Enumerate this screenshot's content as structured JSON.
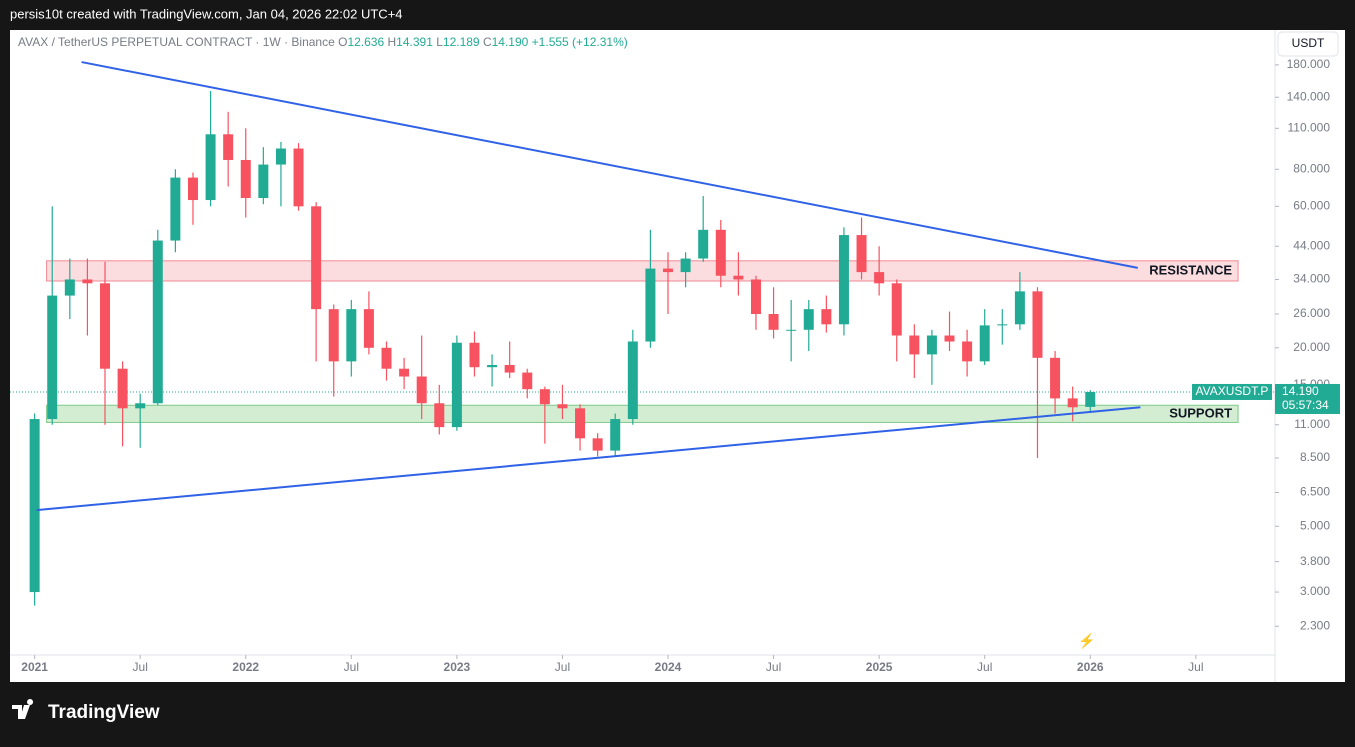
{
  "page": {
    "caption": "persis10t created with TradingView.com, Jan 04, 2026 22:02 UTC+4",
    "brand": "TradingView",
    "currency_button": "USDT"
  },
  "chart_data": {
    "type": "candlestick",
    "title": "AVAX / TetherUS PERPETUAL CONTRACT · 1W · Binance",
    "legend": {
      "o_prefix": "O",
      "o": "12.636",
      "h_prefix": "H",
      "h": "14.391",
      "l_prefix": "L",
      "l": "12.189",
      "c_prefix": "C",
      "c": "14.190",
      "change": "+1.555 (+12.31%)"
    },
    "up_color": "#22ab94",
    "down_color": "#f7525f",
    "open": [
      3.0,
      11.5,
      30,
      34,
      33,
      17,
      12.5,
      13,
      46,
      75,
      63,
      105,
      86,
      64,
      83,
      94,
      60,
      27,
      18,
      27,
      20,
      17,
      16,
      13,
      10.8,
      20.8,
      17.2,
      17.5,
      16.5,
      14.5,
      12.9,
      12.5,
      9.9,
      9.0,
      11.5,
      21,
      37,
      36,
      40,
      50,
      35,
      34,
      26,
      23,
      23,
      27,
      24,
      48,
      36,
      33,
      22,
      19,
      22,
      21,
      18,
      23.8,
      24,
      31,
      18.5,
      13.5,
      12.636
    ],
    "high": [
      12.0,
      60,
      40,
      40,
      39,
      18,
      14,
      50,
      80,
      78,
      147,
      125,
      110,
      95,
      99,
      98,
      62,
      28,
      29,
      31,
      21,
      18.5,
      22,
      15,
      22,
      22.7,
      19,
      21,
      17,
      14.8,
      15,
      12.9,
      10.3,
      12,
      23,
      50,
      42,
      42,
      65,
      54,
      42,
      35,
      32,
      29,
      29,
      30,
      51,
      55,
      44,
      34,
      24,
      23,
      26.5,
      23,
      27,
      27,
      36,
      32,
      19.5,
      14.8,
      14.391
    ],
    "low": [
      2.7,
      11.0,
      25,
      22,
      11,
      9.3,
      9.2,
      12.8,
      42,
      52,
      60,
      70,
      55,
      61,
      60,
      58,
      18,
      13.7,
      16,
      19,
      15.5,
      14.5,
      11.5,
      10.2,
      10.5,
      16,
      14.8,
      15.8,
      13.5,
      9.5,
      11.5,
      9.0,
      8.6,
      8.6,
      11,
      20,
      26,
      32,
      39,
      32,
      30,
      23,
      21.5,
      18,
      19.5,
      22.5,
      22,
      34,
      30,
      18,
      15.8,
      15,
      19.5,
      16,
      17.5,
      20.5,
      23,
      8.5,
      12,
      11.3,
      12.189
    ],
    "close": [
      11.5,
      30,
      34,
      33,
      17,
      12.5,
      13,
      46,
      75,
      63,
      105,
      86,
      64,
      83,
      94,
      60,
      27,
      18,
      27,
      20,
      17,
      16,
      13,
      10.8,
      20.8,
      17.2,
      17.5,
      16.5,
      14.5,
      12.9,
      12.5,
      9.9,
      9.0,
      11.5,
      21,
      37,
      36,
      40,
      50,
      35,
      34,
      26,
      23,
      23,
      27,
      24,
      48,
      36,
      33,
      22,
      19,
      22,
      21,
      18,
      23.8,
      24,
      31,
      18.5,
      13.5,
      12.6,
      14.19
    ],
    "xlim": [
      -1.4,
      70.5
    ],
    "xticks": [
      {
        "value": 0,
        "label": "2021"
      },
      {
        "value": 6,
        "label": "Jul"
      },
      {
        "value": 12,
        "label": "2022"
      },
      {
        "value": 18,
        "label": "Jul"
      },
      {
        "value": 24,
        "label": "2023"
      },
      {
        "value": 30,
        "label": "Jul"
      },
      {
        "value": 36,
        "label": "2024"
      },
      {
        "value": 42,
        "label": "Jul"
      },
      {
        "value": 48,
        "label": "2025"
      },
      {
        "value": 54,
        "label": "Jul"
      },
      {
        "value": 60,
        "label": "2026"
      },
      {
        "value": 66,
        "label": "Jul"
      }
    ],
    "log_scale": true,
    "ylim": [
      1.84,
      236
    ],
    "yticks": [
      {
        "value": 2.3,
        "label": "2.300"
      },
      {
        "value": 3,
        "label": "3.000"
      },
      {
        "value": 3.8,
        "label": "3.800"
      },
      {
        "value": 5,
        "label": "5.000"
      },
      {
        "value": 6.5,
        "label": "6.500"
      },
      {
        "value": 8.5,
        "label": "8.500"
      },
      {
        "value": 11,
        "label": "11.000"
      },
      {
        "value": 15,
        "label": "15.000"
      },
      {
        "value": 20,
        "label": "20.000"
      },
      {
        "value": 26,
        "label": "26.000"
      },
      {
        "value": 34,
        "label": "34.000"
      },
      {
        "value": 44,
        "label": "44.000"
      },
      {
        "value": 60,
        "label": "60.000"
      },
      {
        "value": 80,
        "label": "80.000"
      },
      {
        "value": 110,
        "label": "110.000"
      },
      {
        "value": 140,
        "label": "140.000"
      },
      {
        "value": 180,
        "label": "180.000"
      }
    ],
    "zones": [
      {
        "label": "RESISTANCE",
        "low": 33.6,
        "high": 39.3,
        "x": [
          0.68,
          68.4
        ],
        "fill": "#fbdde0",
        "stroke": "#f08a93"
      },
      {
        "label": "SUPPORT",
        "low": 11.2,
        "high": 12.8,
        "x": [
          0.68,
          68.4
        ],
        "fill": "#d3edd2",
        "stroke": "#7fc98a"
      }
    ],
    "trendlines": [
      {
        "x": [
          2.67,
          62.7
        ],
        "y": [
          184,
          37.2
        ],
        "color": "#2f62e6"
      },
      {
        "x": [
          0.11,
          62.85
        ],
        "y": [
          5.67,
          12.6
        ],
        "color": "#2f62e6"
      }
    ],
    "last_price": {
      "symbol": "AVAXUSDT.P",
      "value": 14.19,
      "value_label": "14.190",
      "countdown": "05:57:34",
      "color": "#22ab94"
    }
  }
}
